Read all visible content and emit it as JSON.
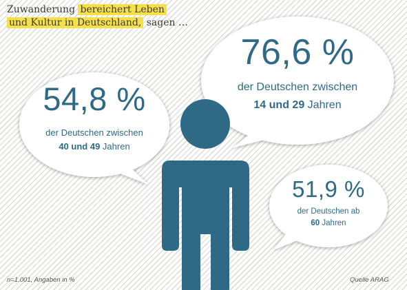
{
  "headline": {
    "part1": "Zuwanderung",
    "highlight1": "bereichert Leben",
    "highlight2": "und Kultur in Deutschland,",
    "part2": "sagen …"
  },
  "bubbles": [
    {
      "value": "54,8 %",
      "line1": "der Deutschen zwischen",
      "bold": "40 und 49",
      "rest": "Jahren"
    },
    {
      "value": "76,6 %",
      "line1": "der Deutschen zwischen",
      "bold": "14 und 29",
      "rest": "Jahren"
    },
    {
      "value": "51,9 %",
      "line1": "der Deutschen ab",
      "bold": "60",
      "rest": "Jahren"
    }
  ],
  "footnote": "n=1.001, Angaben in %",
  "source": "Quelle ARAG",
  "colors": {
    "accent": "#2e6a86",
    "highlight": "#f6e04a"
  }
}
